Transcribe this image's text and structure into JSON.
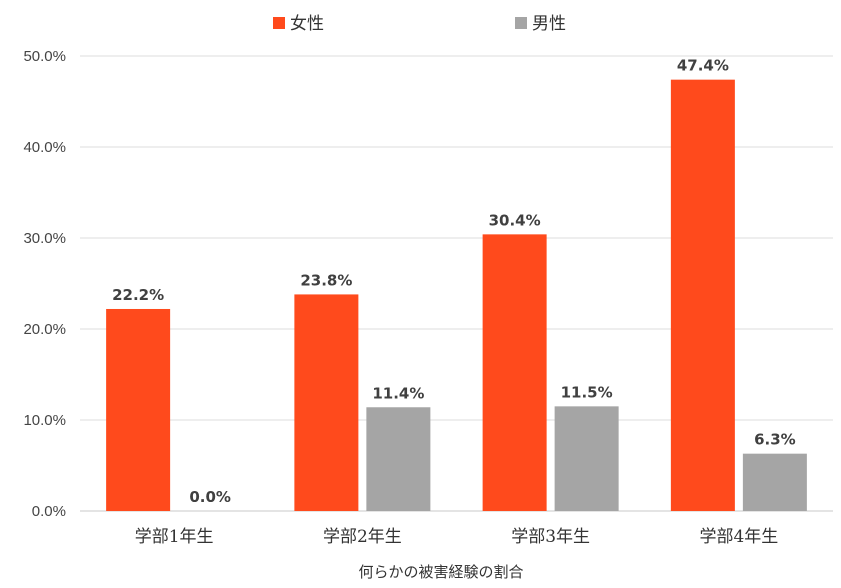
{
  "chart_data": {
    "type": "bar",
    "categories": [
      "学部1年生",
      "学部2年生",
      "学部3年生",
      "学部4年生"
    ],
    "series": [
      {
        "name": "女性",
        "color": "#FF4A1C",
        "values": [
          22.2,
          23.8,
          30.4,
          47.4
        ],
        "labels": [
          "22.2%",
          "23.8%",
          "30.4%",
          "47.4%"
        ]
      },
      {
        "name": "男性",
        "color": "#A5A5A5",
        "values": [
          0.0,
          11.4,
          11.5,
          6.3
        ],
        "labels": [
          "0.0%",
          "11.4%",
          "11.5%",
          "6.3%"
        ]
      }
    ],
    "xlabel": "何らかの被害経験の割合",
    "ylabel": "",
    "ylim": [
      0,
      50
    ],
    "yticks": [
      0,
      10,
      20,
      30,
      40,
      50
    ],
    "ytick_labels": [
      "0.0%",
      "10.0%",
      "20.0%",
      "30.0%",
      "40.0%",
      "50.0%"
    ],
    "grid": true,
    "legend_position": "top-center"
  }
}
